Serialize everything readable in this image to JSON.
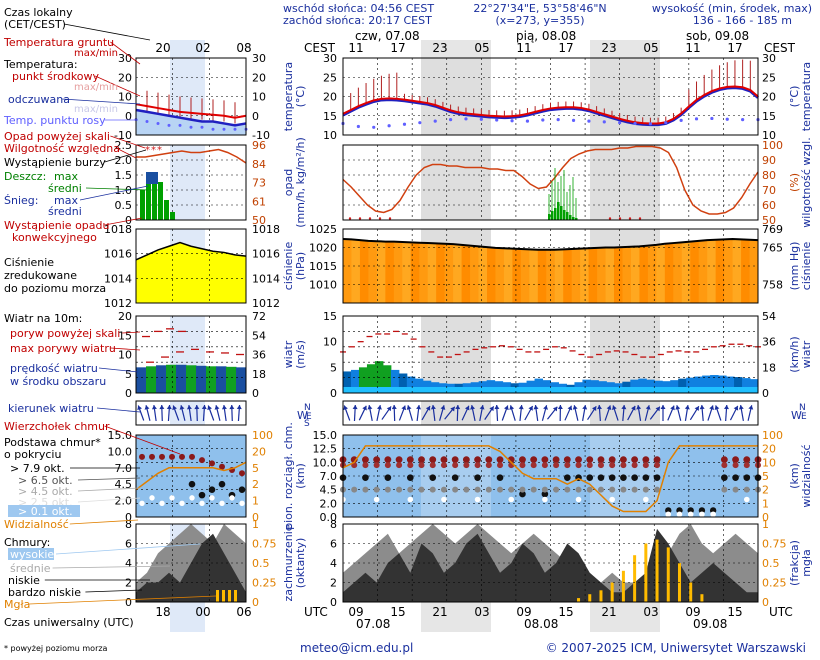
{
  "header": {
    "sunrise": "wschód słońca: 04:56 CEST",
    "sunset": "zachód słońca: 20:17 CEST",
    "coords": "22°27'34\"E, 53°58'46\"N",
    "grid": "(x=273, y=355)",
    "height_label": "wysokość (min, środek, max)",
    "heights": "136 - 166 - 185 m"
  },
  "legend": {
    "time_local": "Czas lokalny",
    "time_local2": "(CET/CEST)",
    "soil_temp": "Temperatura gruntu",
    "soil_temp_mm": "max/min",
    "temp": "Temperatura:",
    "temp_mid": "punkt środkowy",
    "temp_mm": "max/min",
    "felt": "odczuwana",
    "felt_mm": "max/min",
    "dew": "Temp. punktu rosy",
    "precip_above": "Opad powyżej skali",
    "humidity": "Wilgotność względna",
    "storm": "Wystąpienie burzy",
    "rain": "Deszcz:",
    "rain_max": "max",
    "rain_avg": "średni",
    "snow": "Śnieg:",
    "snow_max": "max",
    "snow_avg": "średni",
    "conv1": "Wystąpienie opadu",
    "conv2": "konwekcyjnego",
    "pres1": "Ciśnienie",
    "pres2": "zredukowane",
    "pres3": "do poziomu morza",
    "wind": "Wiatr na 10m:",
    "gust_above": "poryw powyżej skali",
    "gust_max": "max porywy wiatru",
    "wind_speed": "prędkość wiatru",
    "wind_speed2": "w środku obszaru",
    "wind_dir": "kierunek wiatru",
    "wind_chill": "Wierzchołek chmur",
    "cloudbase": "Podstawa chmur*",
    "cloudbase2": "o pokryciu",
    "cb1": "> 7.9 okt.",
    "cb2": "> 6.5 okt.",
    "cb3": "> 4.5 okt.",
    "cb4": "> 2.5 okt.",
    "cb5": "> 0.1 okt.",
    "visibility": "Widzialność",
    "clouds": "Chmury:",
    "c_high": "wysokie",
    "c_mid": "średnie",
    "c_low": "niskie",
    "c_vlow": "bardzo niskie",
    "fog": "Mgła",
    "utc": "Czas uniwersalny (UTC)",
    "footnote": "* powyżej poziomu morza"
  },
  "axis_titles": {
    "temp_l": "temperatura",
    "temp_l2": "(°C)",
    "temp_r": "temperatura",
    "temp_r2": "(°C)",
    "prec_l": "opad",
    "prec_l2": "(mm/h, kg/m²/h)",
    "prec_r": "wilgotność wzgl.",
    "prec_r2": "(%)",
    "pres_l": "ciśnienie",
    "pres_l2": "(hPa)",
    "pres_r": "ciśnienie",
    "pres_r2": "(mm Hg)",
    "wind_l": "wiatr",
    "wind_l2": "(m/s)",
    "wind_r": "wiatr",
    "wind_r2": "(km/h)",
    "cb_l": "pion. rozciągł. chm.",
    "cb_l2": "(km)",
    "cb_r": "widzialność",
    "cb_r2": "(km)",
    "cl_l": "zachmurzenie",
    "cl_l2": "(oktanty)",
    "cl_r": "mgła",
    "cl_r2": "(frakcja)"
  },
  "time_axis": {
    "top_unit": "CEST",
    "bottom_unit": "UTC",
    "days_top": [
      "czw, 07.08",
      "pią, 08.08",
      "sob, 09.08"
    ],
    "hours_top": [
      "11",
      "17",
      "23",
      "05",
      "11",
      "17",
      "23",
      "05",
      "11",
      "17"
    ],
    "hours_bottom": [
      "09",
      "15",
      "21",
      "03",
      "09",
      "15",
      "21",
      "03",
      "09",
      "15"
    ],
    "days_bottom": [
      "07.08",
      "08.08",
      "09.08"
    ],
    "small_top": [
      "20",
      "02",
      "08"
    ],
    "small_bottom": [
      "18",
      "00",
      "06"
    ]
  },
  "footer": {
    "email": "meteo@icm.edu.pl",
    "copyright": "© 2007-2025 ICM, Uniwersytet Warszawski"
  },
  "colors": {
    "temp": "#e00000",
    "felt": "#2020c0",
    "dew": "#6060ff",
    "humidity": "#d04010",
    "pressure_fill": "#ff9900",
    "pressure_line": "#000000",
    "wind_fill": "#1080e0",
    "rain": "#00a000",
    "night": "#d8d8d8",
    "sky": "#9ec8f0",
    "fog": "#ffbb00",
    "axis_text": "#1a2f9e",
    "orange_axis": "#e08000"
  },
  "chart_data": [
    {
      "type": "line",
      "title": "temperatura",
      "x_hours_from_start": "hourly",
      "ylim": [
        10,
        30
      ],
      "yticks": [
        10,
        15,
        20,
        25,
        30
      ],
      "series": [
        {
          "name": "punkt środkowy",
          "values": [
            15.5,
            16.5,
            17.5,
            18.3,
            19,
            19.4,
            19.5,
            19.4,
            19.2,
            18.9,
            18.6,
            18.3,
            17.8,
            17.1,
            16.4,
            15.9,
            15.6,
            15.4,
            15.2,
            15,
            14.9,
            14.8,
            14.9,
            15.1,
            15.5,
            16,
            16.5,
            16.9,
            17.1,
            17.2,
            17.2,
            17,
            16.6,
            16,
            15.4,
            14.8,
            14.2,
            13.7,
            13.3,
            13.1,
            13,
            13,
            13.3,
            14.2,
            15.6,
            17.4,
            19.1,
            20.4,
            21.4,
            22.1,
            22.5,
            22.6,
            22.4,
            21.7,
            20
          ]
        },
        {
          "name": "odczuwana",
          "values": [
            15.2,
            16.2,
            17.2,
            18,
            18.7,
            19.1,
            19.2,
            19.1,
            18.9,
            18.6,
            18.3,
            18,
            17.5,
            16.8,
            16.1,
            15.6,
            15.3,
            15.1,
            14.9,
            14.7,
            14.6,
            14.5,
            14.6,
            14.8,
            15.2,
            15.7,
            16.2,
            16.6,
            16.8,
            16.9,
            16.9,
            16.7,
            16.3,
            15.7,
            15.1,
            14.5,
            13.9,
            13.4,
            13,
            12.8,
            12.7,
            12.7,
            13,
            13.9,
            15.3,
            17.1,
            18.8,
            20.1,
            21.1,
            21.8,
            22.2,
            22.3,
            22.1,
            21.4,
            19.7
          ]
        },
        {
          "name": "Temp. punktu rosy",
          "values": [
            13,
            12.6,
            12.2,
            12,
            12,
            12.2,
            12.4,
            12.6,
            12.8,
            13,
            13.2,
            13.4,
            13.6,
            13.8,
            14,
            14.1,
            14.2,
            14.2,
            14.1,
            14,
            13.9,
            13.8,
            13.7,
            13.6,
            13.6,
            13.7,
            13.9,
            14,
            14,
            13.9,
            13.8,
            13.7,
            13.6,
            13.5,
            13.4,
            13.3,
            13.2,
            13.1,
            13,
            12.9,
            12.9,
            13,
            13.2,
            13.5,
            13.8,
            14,
            14.2,
            14.3,
            14.3,
            14.2,
            14.1,
            14,
            14,
            14,
            14
          ]
        }
      ]
    },
    {
      "type": "line",
      "title": "wilgotność wzgl.",
      "ylim": [
        50,
        100
      ],
      "yticks": [
        50,
        60,
        70,
        80,
        90,
        100
      ],
      "series": [
        {
          "name": "Wilgotność względna",
          "values": [
            77,
            72,
            66,
            60,
            56,
            55,
            57,
            63,
            72,
            80,
            85,
            87,
            87,
            86,
            86,
            85,
            85,
            85,
            84,
            84,
            83,
            83,
            79,
            74,
            71,
            72,
            78,
            85,
            91,
            94,
            96,
            97,
            97,
            97,
            98,
            98,
            99,
            99,
            99,
            98,
            95,
            85,
            70,
            60,
            56,
            54,
            54,
            55,
            58,
            65,
            74,
            82
          ]
        }
      ]
    },
    {
      "type": "line",
      "title": "ciśnienie",
      "ylim": [
        1005,
        1025
      ],
      "yticks": [
        1010,
        1015,
        1020,
        1025
      ],
      "series": [
        {
          "name": "Ciśnienie",
          "values": [
            1022.3,
            1022.2,
            1022,
            1021.8,
            1021.7,
            1021.6,
            1021.6,
            1021.5,
            1021.4,
            1021.3,
            1021.2,
            1021.1,
            1021,
            1020.9,
            1020.7,
            1020.5,
            1020.3,
            1020.1,
            1019.9,
            1019.8,
            1019.7,
            1019.6,
            1019.5,
            1019.4,
            1019.4,
            1019.4,
            1019.5,
            1019.6,
            1019.7,
            1019.8,
            1019.9,
            1020,
            1020,
            1020.1,
            1020.2,
            1020.3,
            1020.5,
            1020.7,
            1021,
            1021.2,
            1021.4,
            1021.6,
            1021.8,
            1022,
            1022.1,
            1022.2,
            1022.3,
            1022.2,
            1022.1,
            1022
          ]
        }
      ]
    },
    {
      "type": "line",
      "title": "wiatr",
      "ylim": [
        0,
        15
      ],
      "yticks": [
        0,
        5,
        10,
        15
      ],
      "series": [
        {
          "name": "prędkość wiatru",
          "values": [
            4.2,
            4.5,
            5,
            5.6,
            6.2,
            5.4,
            4.5,
            3.8,
            3.2,
            2.8,
            2.4,
            2.1,
            1.9,
            1.8,
            1.8,
            1.9,
            2.1,
            2.3,
            2.5,
            2.3,
            2.1,
            1.9,
            2,
            2.4,
            2.8,
            2.5,
            2.1,
            1.8,
            1.6,
            2.1,
            2.6,
            2.5,
            2.3,
            2.1,
            1.9,
            2.2,
            2.6,
            2.8,
            2.6,
            2.4,
            2.3,
            2.5,
            2.8,
            3,
            3.2,
            3.4,
            3.5,
            3.4,
            3.2,
            3.1,
            2.9,
            2.7,
            2.5
          ]
        },
        {
          "name": "max porywy wiatru",
          "values": [
            8,
            9,
            10,
            11,
            11.5,
            11.5,
            12,
            11.5,
            10.5,
            9,
            8,
            7,
            7,
            7.5,
            8,
            8.5,
            8.8,
            9,
            9.2,
            9,
            8.5,
            8,
            8,
            8.5,
            9,
            8.8,
            8.2,
            7.5,
            7,
            7.5,
            8,
            8.2,
            8,
            7.5,
            7,
            7,
            7.5,
            8,
            8.2,
            8,
            8,
            8.5,
            9,
            9.2,
            9.5,
            9.5,
            9.2,
            9
          ]
        }
      ]
    },
    {
      "type": "scatter",
      "title": "podstawa chmur / widzialność",
      "ylim": [
        0,
        15
      ],
      "yticks": [
        0,
        2,
        4.5,
        7,
        10,
        12.5,
        15
      ],
      "series": [
        {
          "name": "widzialność",
          "values": [
            9,
            10,
            13,
            13,
            13,
            13,
            13,
            13,
            13,
            13,
            13,
            13,
            13,
            13,
            12,
            10,
            8,
            7,
            7,
            7,
            6,
            7,
            6,
            4,
            2,
            1,
            1,
            1,
            3,
            10,
            13,
            13,
            13,
            13,
            13,
            13,
            13,
            13
          ]
        }
      ]
    },
    {
      "type": "area",
      "title": "zachmurzenie",
      "ylim": [
        0,
        8
      ],
      "yticks": [
        0,
        2,
        4,
        6,
        8
      ],
      "series": [
        {
          "name": "mgła",
          "values": [
            0,
            0,
            0,
            0,
            0,
            0,
            0,
            0,
            0,
            0,
            0,
            0,
            0,
            0,
            0,
            0,
            0,
            0,
            0,
            0,
            0,
            0.05,
            0.1,
            0.15,
            0.25,
            0.4,
            0.6,
            0.75,
            0.8,
            0.7,
            0.5,
            0.25,
            0.1,
            0,
            0,
            0,
            0,
            0
          ]
        }
      ]
    }
  ]
}
